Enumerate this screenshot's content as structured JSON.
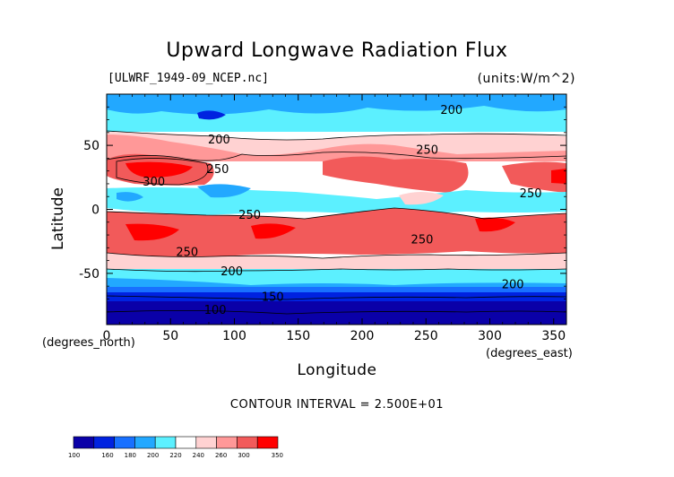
{
  "chart_data": {
    "type": "heatmap",
    "title": "Upward Longwave Radiation Flux",
    "subtitle_left": "[ULWRF_1949-09_NCEP.nc]",
    "subtitle_right": "(units:W/m^2)",
    "xlabel": "Longitude",
    "ylabel": "Latitude",
    "x_units": "(degrees_east)",
    "y_units": "(degrees_north)",
    "xlim": [
      0,
      360
    ],
    "ylim": [
      -90,
      90
    ],
    "x_ticks": [
      0,
      50,
      100,
      150,
      200,
      250,
      300,
      350
    ],
    "y_ticks": [
      -50,
      0,
      50
    ],
    "contour_interval_text": "CONTOUR INTERVAL = 2.500E+01",
    "contour_labels": [
      {
        "text": "200",
        "lon": 270,
        "lat": 78
      },
      {
        "text": "200",
        "lon": 88,
        "lat": 55
      },
      {
        "text": "250",
        "lon": 251,
        "lat": 47
      },
      {
        "text": "250",
        "lon": 87,
        "lat": 32
      },
      {
        "text": "300",
        "lon": 37,
        "lat": 22
      },
      {
        "text": "250",
        "lon": 332,
        "lat": 13
      },
      {
        "text": "250",
        "lon": 112,
        "lat": -4
      },
      {
        "text": "250",
        "lon": 247,
        "lat": -23
      },
      {
        "text": "250",
        "lon": 63,
        "lat": -33
      },
      {
        "text": "200",
        "lon": 98,
        "lat": -48
      },
      {
        "text": "200",
        "lon": 318,
        "lat": -58
      },
      {
        "text": "150",
        "lon": 130,
        "lat": -68
      },
      {
        "text": "100",
        "lon": 85,
        "lat": -78
      }
    ],
    "colorbar_levels": [
      "100",
      "160",
      "180",
      "200",
      "220",
      "240",
      "260",
      "300",
      "350"
    ],
    "colorbar_colors": [
      "#0a00a8",
      "#0022e0",
      "#1870ff",
      "#22a8ff",
      "#5cf0ff",
      "#ffffff",
      "#ffd2d2",
      "#ff9898",
      "#f25a5a",
      "#ff0000"
    ]
  }
}
